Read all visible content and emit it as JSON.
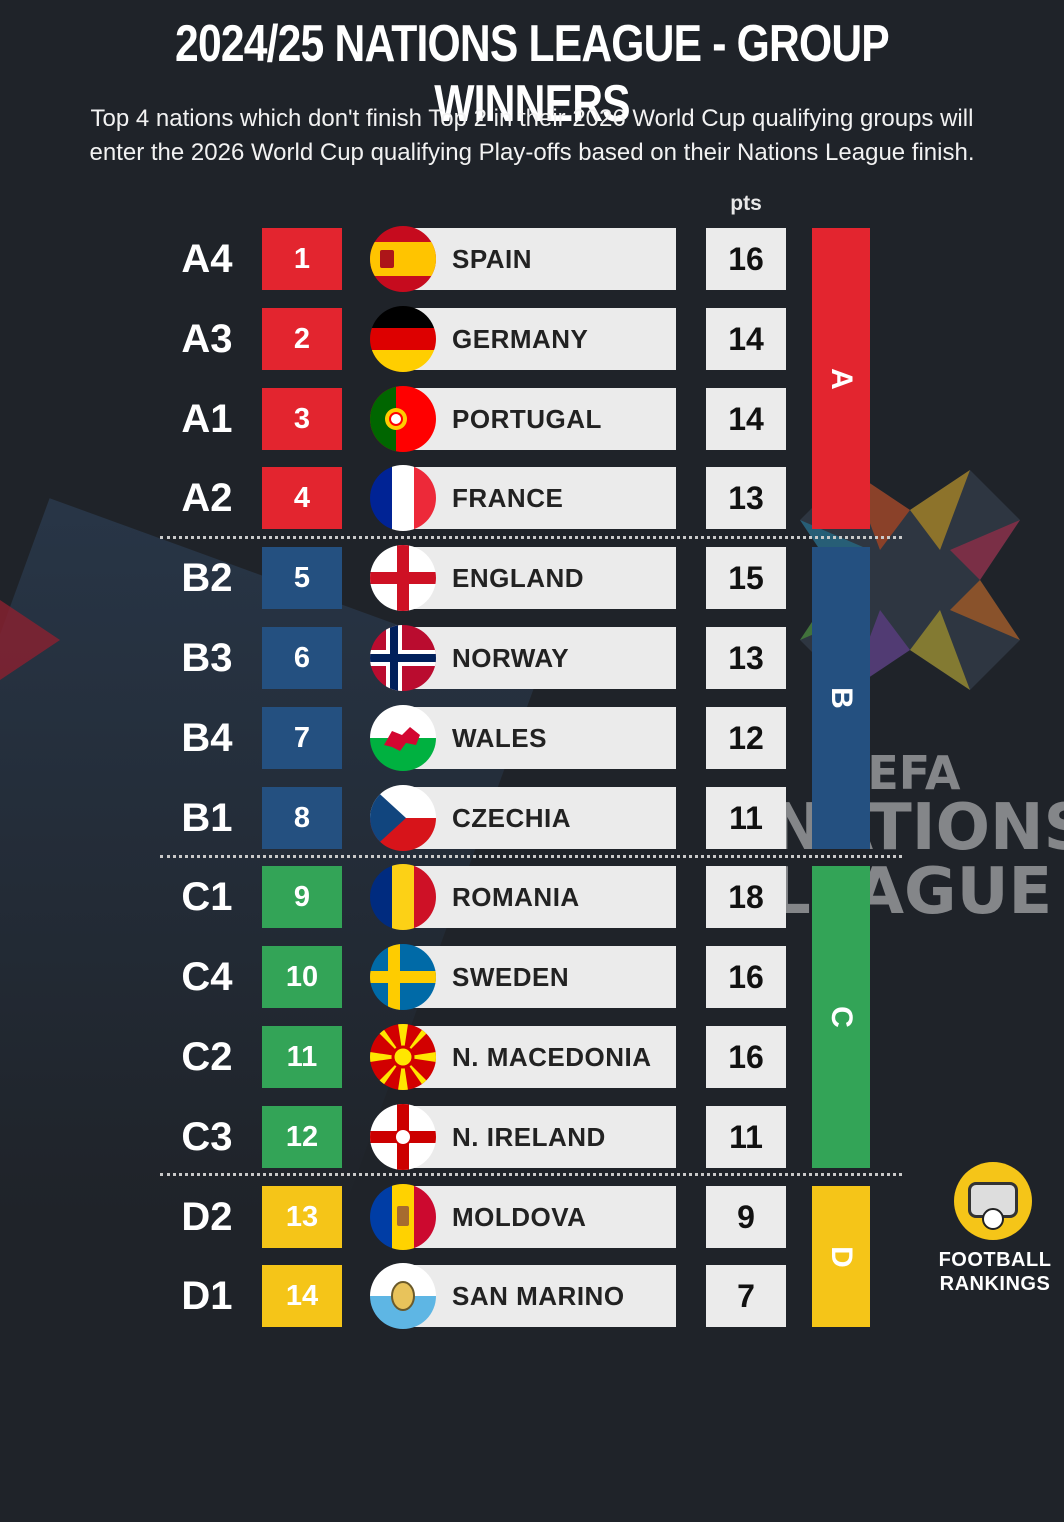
{
  "title": "2024/25 NATIONS LEAGUE - GROUP WINNERS",
  "subtitle_line1": "Top 4 nations which don't finish Top 2 in their 2026 World Cup qualifying groups will",
  "subtitle_line2": "enter the 2026 World Cup qualifying Play-offs based on their Nations League finish.",
  "pts_header": "pts",
  "colors": {
    "A": "#e3252f",
    "B": "#245080",
    "C": "#33a457",
    "D": "#f5c518"
  },
  "rows": [
    {
      "group": "A4",
      "rank": "1",
      "country": "SPAIN",
      "pts": "16",
      "league": "A",
      "flag": "spain-flag"
    },
    {
      "group": "A3",
      "rank": "2",
      "country": "GERMANY",
      "pts": "14",
      "league": "A",
      "flag": "germany-flag"
    },
    {
      "group": "A1",
      "rank": "3",
      "country": "PORTUGAL",
      "pts": "14",
      "league": "A",
      "flag": "portugal-flag"
    },
    {
      "group": "A2",
      "rank": "4",
      "country": "FRANCE",
      "pts": "13",
      "league": "A",
      "flag": "france-flag"
    },
    {
      "group": "B2",
      "rank": "5",
      "country": "ENGLAND",
      "pts": "15",
      "league": "B",
      "flag": "england-flag"
    },
    {
      "group": "B3",
      "rank": "6",
      "country": "NORWAY",
      "pts": "13",
      "league": "B",
      "flag": "norway-flag"
    },
    {
      "group": "B4",
      "rank": "7",
      "country": "WALES",
      "pts": "12",
      "league": "B",
      "flag": "wales-flag"
    },
    {
      "group": "B1",
      "rank": "8",
      "country": "CZECHIA",
      "pts": "11",
      "league": "B",
      "flag": "czechia-flag"
    },
    {
      "group": "C1",
      "rank": "9",
      "country": "ROMANIA",
      "pts": "18",
      "league": "C",
      "flag": "romania-flag"
    },
    {
      "group": "C4",
      "rank": "10",
      "country": "SWEDEN",
      "pts": "16",
      "league": "C",
      "flag": "sweden-flag"
    },
    {
      "group": "C2",
      "rank": "11",
      "country": "N. MACEDONIA",
      "pts": "16",
      "league": "C",
      "flag": "north-macedonia-flag"
    },
    {
      "group": "C3",
      "rank": "12",
      "country": "N. IRELAND",
      "pts": "11",
      "league": "C",
      "flag": "northern-ireland-flag"
    },
    {
      "group": "D2",
      "rank": "13",
      "country": "MOLDOVA",
      "pts": "9",
      "league": "D",
      "flag": "moldova-flag"
    },
    {
      "group": "D1",
      "rank": "14",
      "country": "SAN MARINO",
      "pts": "7",
      "league": "D",
      "flag": "san-marino-flag"
    }
  ],
  "leagues": [
    {
      "label": "A",
      "color": "#e3252f"
    },
    {
      "label": "B",
      "color": "#245080"
    },
    {
      "label": "C",
      "color": "#33a457"
    },
    {
      "label": "D",
      "color": "#f5c518"
    }
  ],
  "background_logo": {
    "line1": "UEFA",
    "line2": "NATIONS",
    "line3": "LEAGUE"
  },
  "brand": {
    "line1": "FOOTBALL",
    "line2": "RANKINGS"
  }
}
